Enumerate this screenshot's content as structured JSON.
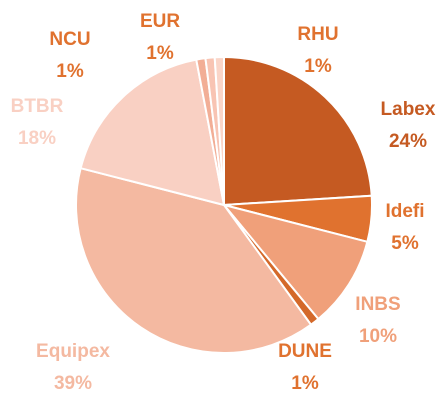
{
  "chart_data": {
    "type": "pie",
    "categories": [
      "Labex",
      "Idefi",
      "INBS",
      "DUNE",
      "Equipex",
      "BTBR",
      "NCU",
      "EUR",
      "RHU"
    ],
    "values": [
      24,
      5,
      10,
      1,
      39,
      18,
      1,
      1,
      1
    ],
    "value_labels": [
      "24%",
      "5%",
      "10%",
      "1%",
      "39%",
      "18%",
      "1%",
      "1%",
      "1%"
    ],
    "colors": [
      "#c55a22",
      "#e0722f",
      "#f0a07a",
      "#d4692a",
      "#f4b9a1",
      "#f9d0c3",
      "#f2ae96",
      "#f8c4b3",
      "#fad5c8"
    ],
    "label_colors": [
      "#c55a22",
      "#e0722f",
      "#f0a07a",
      "#e0722f",
      "#f4b9a1",
      "#f9d0c3",
      "#e0722f",
      "#e0722f",
      "#e0722f"
    ]
  }
}
